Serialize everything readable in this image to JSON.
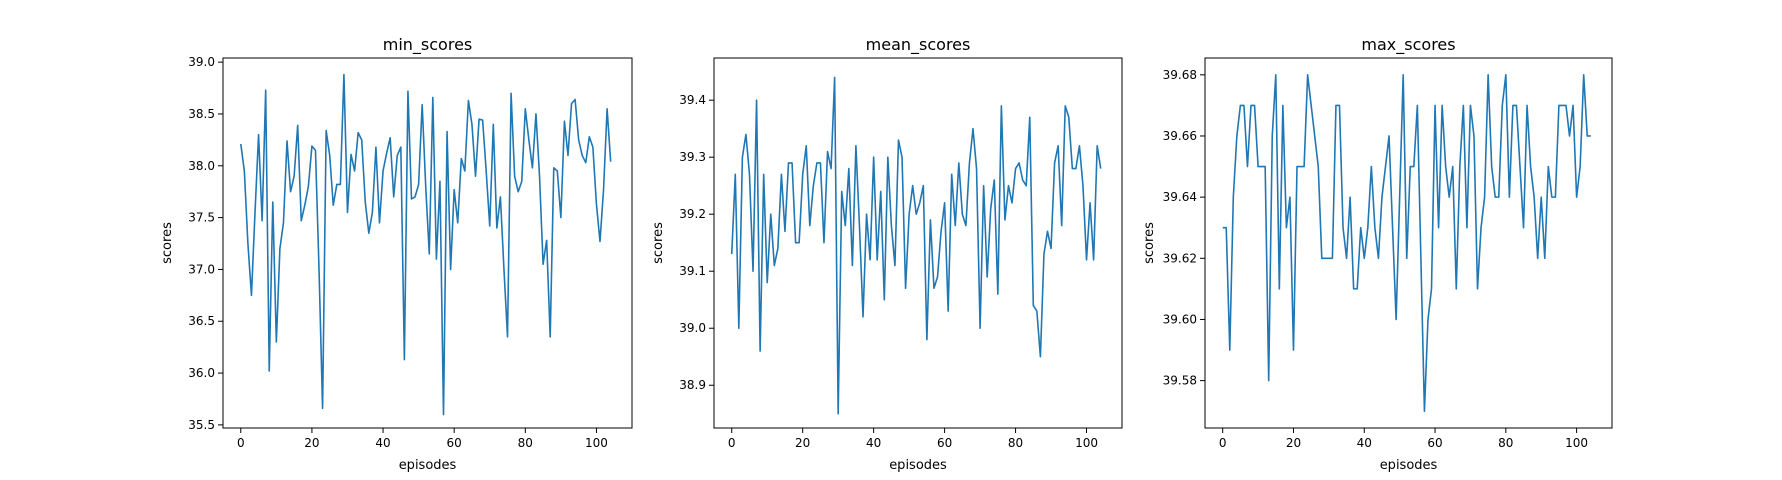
{
  "chart_data": [
    {
      "type": "line",
      "title": "min_scores",
      "xlabel": "episodes",
      "ylabel": "scores",
      "xlim": [
        -5,
        110
      ],
      "ylim": [
        35.47,
        39.04
      ],
      "xticks": [
        "0",
        "20",
        "40",
        "60",
        "80",
        "100"
      ],
      "yticks": [
        "35.5",
        "36.0",
        "36.5",
        "37.0",
        "37.5",
        "38.0",
        "38.5",
        "39.0"
      ],
      "grid": false,
      "series": [
        {
          "x": [
            0,
            1,
            2,
            3,
            4,
            5,
            6,
            7,
            8,
            9,
            10,
            11,
            12,
            13,
            14,
            15,
            16,
            17,
            18,
            19,
            20,
            21,
            22,
            23,
            24,
            25,
            26,
            27,
            28,
            29,
            30,
            31,
            32,
            33,
            34,
            35,
            36,
            37,
            38,
            39,
            40,
            41,
            42,
            43,
            44,
            45,
            46,
            47,
            48,
            49,
            50,
            51,
            52,
            53,
            54,
            55,
            56,
            57,
            58,
            59,
            60,
            61,
            62,
            63,
            64,
            65,
            66,
            67,
            68,
            69,
            70,
            71,
            72,
            73,
            74,
            75,
            76,
            77,
            78,
            79,
            80,
            81,
            82,
            83,
            84,
            85,
            86,
            87,
            88,
            89,
            90,
            91,
            92,
            93,
            94,
            95,
            96,
            97,
            98,
            99,
            100,
            101,
            102,
            103,
            104
          ],
          "y": [
            38.21,
            37.95,
            37.25,
            36.75,
            37.55,
            38.3,
            37.47,
            38.73,
            36.02,
            37.65,
            36.3,
            37.2,
            37.45,
            38.24,
            37.75,
            37.9,
            38.39,
            37.47,
            37.62,
            37.8,
            38.19,
            38.15,
            37.0,
            35.66,
            38.34,
            38.1,
            37.62,
            37.82,
            37.82,
            38.88,
            37.55,
            38.11,
            37.95,
            38.32,
            38.25,
            37.65,
            37.35,
            37.55,
            38.18,
            37.45,
            37.95,
            38.12,
            38.27,
            37.7,
            38.1,
            38.18,
            36.13,
            38.72,
            37.68,
            37.7,
            37.82,
            38.59,
            37.8,
            37.15,
            38.66,
            37.1,
            37.85,
            35.6,
            38.33,
            37.0,
            37.77,
            37.45,
            38.07,
            37.95,
            38.63,
            38.4,
            37.9,
            38.45,
            38.44,
            37.95,
            37.42,
            38.4,
            37.4,
            37.7,
            37.0,
            36.35,
            38.7,
            37.9,
            37.75,
            37.85,
            38.55,
            38.25,
            37.98,
            38.5,
            37.9,
            37.05,
            37.28,
            36.35,
            37.98,
            37.95,
            37.5,
            38.43,
            38.1,
            38.6,
            38.64,
            38.25,
            38.1,
            38.03,
            38.28,
            38.18,
            37.63,
            37.27,
            37.77,
            38.55,
            38.04
          ]
        }
      ]
    },
    {
      "type": "line",
      "title": "mean_scores",
      "xlabel": "episodes",
      "ylabel": "scores",
      "xlim": [
        -5,
        110
      ],
      "ylim": [
        38.825,
        39.474
      ],
      "xticks": [
        "0",
        "20",
        "40",
        "60",
        "80",
        "100"
      ],
      "yticks": [
        "38.9",
        "39.0",
        "39.1",
        "39.2",
        "39.3",
        "39.4"
      ],
      "grid": false,
      "series": [
        {
          "x": [
            0,
            1,
            2,
            3,
            4,
            5,
            6,
            7,
            8,
            9,
            10,
            11,
            12,
            13,
            14,
            15,
            16,
            17,
            18,
            19,
            20,
            21,
            22,
            23,
            24,
            25,
            26,
            27,
            28,
            29,
            30,
            31,
            32,
            33,
            34,
            35,
            36,
            37,
            38,
            39,
            40,
            41,
            42,
            43,
            44,
            45,
            46,
            47,
            48,
            49,
            50,
            51,
            52,
            53,
            54,
            55,
            56,
            57,
            58,
            59,
            60,
            61,
            62,
            63,
            64,
            65,
            66,
            67,
            68,
            69,
            70,
            71,
            72,
            73,
            74,
            75,
            76,
            77,
            78,
            79,
            80,
            81,
            82,
            83,
            84,
            85,
            86,
            87,
            88,
            89,
            90,
            91,
            92,
            93,
            94,
            95,
            96,
            97,
            98,
            99,
            100,
            101,
            102,
            103,
            104
          ],
          "y": [
            39.13,
            39.27,
            39.0,
            39.3,
            39.34,
            39.27,
            39.1,
            39.4,
            38.96,
            39.27,
            39.08,
            39.2,
            39.11,
            39.14,
            39.27,
            39.17,
            39.29,
            39.29,
            39.15,
            39.15,
            39.27,
            39.32,
            39.18,
            39.25,
            39.29,
            39.29,
            39.15,
            39.31,
            39.28,
            39.44,
            38.85,
            39.24,
            39.18,
            39.28,
            39.11,
            39.32,
            39.18,
            39.02,
            39.2,
            39.12,
            39.3,
            39.12,
            39.24,
            39.05,
            39.3,
            39.18,
            39.11,
            39.33,
            39.3,
            39.07,
            39.2,
            39.25,
            39.2,
            39.22,
            39.25,
            38.98,
            39.19,
            39.07,
            39.09,
            39.17,
            39.22,
            39.03,
            39.27,
            39.18,
            39.29,
            39.2,
            39.18,
            39.29,
            39.35,
            39.28,
            39.0,
            39.25,
            39.09,
            39.21,
            39.26,
            39.06,
            39.39,
            39.19,
            39.25,
            39.22,
            39.28,
            39.29,
            39.26,
            39.25,
            39.37,
            39.04,
            39.03,
            38.95,
            39.13,
            39.17,
            39.14,
            39.29,
            39.32,
            39.18,
            39.39,
            39.37,
            39.28,
            39.28,
            39.32,
            39.25,
            39.12,
            39.22,
            39.12,
            39.32,
            39.28
          ]
        }
      ]
    },
    {
      "type": "line",
      "title": "max_scores",
      "xlabel": "episodes",
      "ylabel": "scores",
      "xlim": [
        -5,
        110
      ],
      "ylim": [
        39.5645,
        39.6855
      ],
      "xticks": [
        "0",
        "20",
        "40",
        "60",
        "80",
        "100"
      ],
      "yticks": [
        "39.58",
        "39.60",
        "39.62",
        "39.64",
        "39.66",
        "39.68"
      ],
      "grid": false,
      "series": [
        {
          "x": [
            0,
            1,
            2,
            3,
            4,
            5,
            6,
            7,
            8,
            9,
            10,
            11,
            12,
            13,
            14,
            15,
            16,
            17,
            18,
            19,
            20,
            21,
            22,
            23,
            24,
            25,
            26,
            27,
            28,
            29,
            30,
            31,
            32,
            33,
            34,
            35,
            36,
            37,
            38,
            39,
            40,
            41,
            42,
            43,
            44,
            45,
            46,
            47,
            48,
            49,
            50,
            51,
            52,
            53,
            54,
            55,
            56,
            57,
            58,
            59,
            60,
            61,
            62,
            63,
            64,
            65,
            66,
            67,
            68,
            69,
            70,
            71,
            72,
            73,
            74,
            75,
            76,
            77,
            78,
            79,
            80,
            81,
            82,
            83,
            84,
            85,
            86,
            87,
            88,
            89,
            90,
            91,
            92,
            93,
            94,
            95,
            96,
            97,
            98,
            99,
            100,
            101,
            102,
            103,
            104
          ],
          "y": [
            39.63,
            39.63,
            39.59,
            39.64,
            39.66,
            39.67,
            39.67,
            39.65,
            39.67,
            39.67,
            39.65,
            39.65,
            39.65,
            39.58,
            39.66,
            39.68,
            39.61,
            39.67,
            39.63,
            39.64,
            39.59,
            39.65,
            39.65,
            39.65,
            39.68,
            39.67,
            39.66,
            39.65,
            39.62,
            39.62,
            39.62,
            39.62,
            39.67,
            39.67,
            39.63,
            39.62,
            39.64,
            39.61,
            39.61,
            39.63,
            39.62,
            39.63,
            39.65,
            39.63,
            39.62,
            39.64,
            39.65,
            39.66,
            39.63,
            39.6,
            39.64,
            39.68,
            39.62,
            39.65,
            39.65,
            39.67,
            39.62,
            39.57,
            39.6,
            39.61,
            39.67,
            39.63,
            39.67,
            39.65,
            39.64,
            39.65,
            39.61,
            39.65,
            39.67,
            39.63,
            39.67,
            39.66,
            39.61,
            39.63,
            39.64,
            39.68,
            39.65,
            39.64,
            39.64,
            39.67,
            39.68,
            39.64,
            39.67,
            39.67,
            39.65,
            39.63,
            39.67,
            39.65,
            39.64,
            39.62,
            39.64,
            39.62,
            39.65,
            39.64,
            39.64,
            39.67,
            39.67,
            39.67,
            39.66,
            39.67,
            39.64,
            39.65,
            39.68,
            39.66,
            39.66
          ]
        }
      ]
    }
  ]
}
